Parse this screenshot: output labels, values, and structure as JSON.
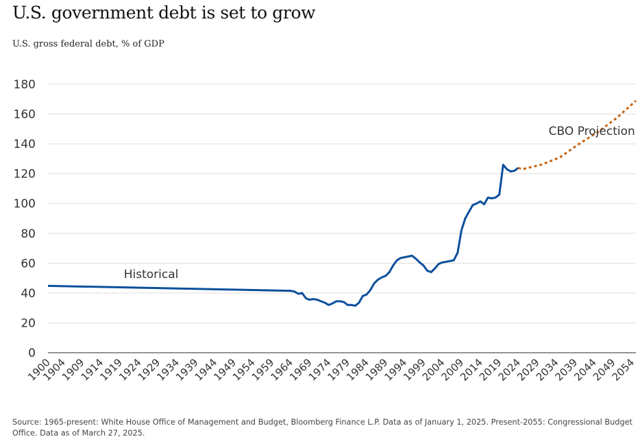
{
  "title": "U.S. government debt is set to grow",
  "subtitle": "U.S. gross federal debt, % of GDP",
  "source": "Source: 1965-present: White House Office of Management and Budget, Bloomberg Finance L.P. Data as of January 1, 2025. Present-2055: Congressional Budget Office. Data as of March 27, 2025.",
  "colors": {
    "historical": "#0b4f9c",
    "projection": "#c8640f",
    "grid": "#dddddd",
    "axis": "#555555"
  },
  "chart_data": {
    "type": "line",
    "title": "U.S. government debt is set to grow",
    "ylabel": "U.S. gross federal debt, % of GDP",
    "xlim": [
      1900,
      2055
    ],
    "ylim": [
      0,
      180
    ],
    "yticks": [
      0,
      20,
      40,
      60,
      80,
      100,
      120,
      140,
      160,
      180
    ],
    "xticks": [
      "1900",
      "1904",
      "1909",
      "1914",
      "1919",
      "1924",
      "1929",
      "1934",
      "1939",
      "1944",
      "1949",
      "1954",
      "1959",
      "1964",
      "1969",
      "1974",
      "1979",
      "1984",
      "1989",
      "1994",
      "1999",
      "2004",
      "2009",
      "2014",
      "2019",
      "2024",
      "2029",
      "2034",
      "2039",
      "2044",
      "2049",
      "2054"
    ],
    "grid": true,
    "series": [
      {
        "name": "Historical",
        "style": "solid",
        "x": [
          1900,
          1964,
          1965,
          1966,
          1967,
          1968,
          1969,
          1970,
          1971,
          1972,
          1973,
          1974,
          1975,
          1976,
          1977,
          1978,
          1979,
          1980,
          1981,
          1982,
          1983,
          1984,
          1985,
          1986,
          1987,
          1988,
          1989,
          1990,
          1991,
          1992,
          1993,
          1994,
          1995,
          1996,
          1997,
          1998,
          1999,
          2000,
          2001,
          2002,
          2003,
          2004,
          2005,
          2006,
          2007,
          2008,
          2009,
          2010,
          2011,
          2012,
          2013,
          2014,
          2015,
          2016,
          2017,
          2018,
          2019,
          2020,
          2021,
          2022,
          2023,
          2024
        ],
        "values": [
          44.8,
          41.5,
          41,
          39.5,
          40,
          36.5,
          35.5,
          36,
          35.5,
          34.5,
          33.5,
          32,
          33,
          34.5,
          34.5,
          34,
          32,
          32,
          31.5,
          33.5,
          38,
          39,
          42,
          46.5,
          49,
          50.5,
          51.5,
          54,
          58.5,
          62,
          63.5,
          64,
          64.5,
          65,
          63,
          60.5,
          58.5,
          55,
          54,
          56.5,
          59.5,
          60.5,
          61,
          61.5,
          62,
          67,
          82,
          90,
          94.5,
          99,
          100,
          101.5,
          99.5,
          104,
          103.5,
          104,
          106,
          126,
          123,
          121.5,
          122,
          124
        ]
      },
      {
        "name": "CBO Projection",
        "style": "dashed",
        "x": [
          2024,
          2025,
          2030,
          2035,
          2040,
          2045,
          2050,
          2055
        ],
        "values": [
          124,
          123,
          126,
          131,
          140,
          148,
          157.5,
          169
        ]
      }
    ],
    "annotations": [
      {
        "text": "Historical",
        "x": 1920,
        "y": 50
      },
      {
        "text": "CBO Projection",
        "x": 2032,
        "y": 146
      }
    ]
  }
}
